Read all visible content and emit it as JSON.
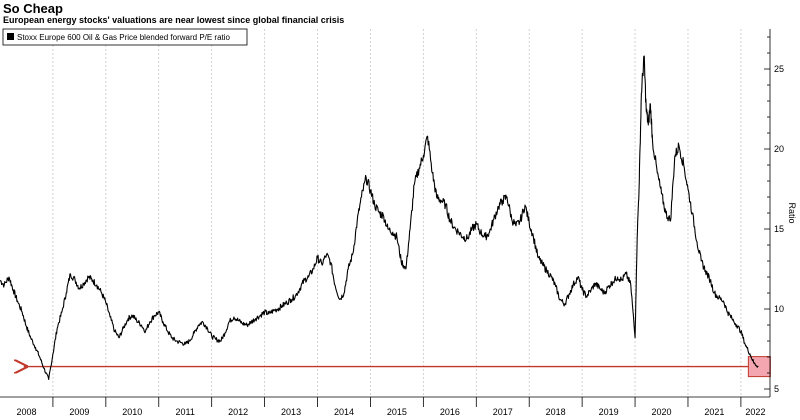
{
  "title": "So Cheap",
  "subtitle": "European energy stocks' valuations are near lowest since global financial crisis",
  "colors": {
    "line": "#000000",
    "grid": "#c8c8c8",
    "arrow": "#c0392b",
    "highlight_fill": "#f4a6b0",
    "highlight_stroke": "#c0392b"
  },
  "chart_data": {
    "type": "line",
    "title": "So Cheap",
    "subtitle": "European energy stocks' valuations are near lowest since global financial crisis",
    "ylabel": "Ratio",
    "xlabel": "",
    "x_axis": "year",
    "xlim": [
      2008,
      2022.55
    ],
    "ylim": [
      4.5,
      27.5
    ],
    "y_ticks": [
      5,
      10,
      15,
      20,
      25
    ],
    "x_tick_labels": [
      "2008",
      "2009",
      "2010",
      "2011",
      "2012",
      "2013",
      "2014",
      "2015",
      "2016",
      "2017",
      "2018",
      "2019",
      "2020",
      "2021",
      "2022"
    ],
    "legend": {
      "position": "top-left",
      "entries": [
        "Stoxx Europe 600 Oil & Gas Price blended forward P/E ratio"
      ]
    },
    "grid": "vertical-dashed",
    "series": [
      {
        "name": "Stoxx Europe 600 Oil & Gas Price blended forward P/E ratio",
        "x": [
          2008.0,
          2008.08,
          2008.17,
          2008.25,
          2008.33,
          2008.42,
          2008.5,
          2008.58,
          2008.67,
          2008.75,
          2008.83,
          2008.92,
          2009.0,
          2009.08,
          2009.17,
          2009.25,
          2009.33,
          2009.42,
          2009.5,
          2009.58,
          2009.67,
          2009.75,
          2009.83,
          2009.92,
          2010.0,
          2010.08,
          2010.17,
          2010.25,
          2010.33,
          2010.42,
          2010.5,
          2010.58,
          2010.67,
          2010.75,
          2010.83,
          2010.92,
          2011.0,
          2011.08,
          2011.17,
          2011.25,
          2011.33,
          2011.42,
          2011.5,
          2011.58,
          2011.67,
          2011.75,
          2011.83,
          2011.92,
          2012.0,
          2012.08,
          2012.17,
          2012.25,
          2012.33,
          2012.42,
          2012.5,
          2012.58,
          2012.67,
          2012.75,
          2012.83,
          2012.92,
          2013.0,
          2013.08,
          2013.17,
          2013.25,
          2013.33,
          2013.42,
          2013.5,
          2013.58,
          2013.67,
          2013.75,
          2013.83,
          2013.92,
          2014.0,
          2014.08,
          2014.17,
          2014.25,
          2014.33,
          2014.42,
          2014.5,
          2014.58,
          2014.67,
          2014.75,
          2014.83,
          2014.92,
          2015.0,
          2015.08,
          2015.17,
          2015.25,
          2015.33,
          2015.42,
          2015.5,
          2015.58,
          2015.67,
          2015.75,
          2015.83,
          2015.92,
          2016.0,
          2016.08,
          2016.17,
          2016.25,
          2016.33,
          2016.42,
          2016.5,
          2016.58,
          2016.67,
          2016.75,
          2016.83,
          2016.92,
          2017.0,
          2017.08,
          2017.17,
          2017.25,
          2017.33,
          2017.42,
          2017.5,
          2017.58,
          2017.67,
          2017.75,
          2017.83,
          2017.92,
          2018.0,
          2018.08,
          2018.17,
          2018.25,
          2018.33,
          2018.42,
          2018.5,
          2018.58,
          2018.67,
          2018.75,
          2018.83,
          2018.92,
          2019.0,
          2019.08,
          2019.17,
          2019.25,
          2019.33,
          2019.42,
          2019.5,
          2019.58,
          2019.67,
          2019.75,
          2019.83,
          2019.92,
          2020.0,
          2020.04,
          2020.08,
          2020.12,
          2020.17,
          2020.21,
          2020.25,
          2020.29,
          2020.33,
          2020.42,
          2020.5,
          2020.58,
          2020.67,
          2020.75,
          2020.83,
          2020.92,
          2021.0,
          2021.08,
          2021.17,
          2021.25,
          2021.33,
          2021.42,
          2021.5,
          2021.58,
          2021.67,
          2021.75,
          2021.83,
          2021.92,
          2022.0,
          2022.08,
          2022.17,
          2022.25,
          2022.33
        ],
        "values": [
          11.8,
          11.5,
          12.0,
          11.2,
          10.5,
          9.8,
          8.9,
          8.2,
          7.6,
          7.0,
          6.3,
          5.6,
          7.2,
          8.8,
          9.8,
          11.0,
          12.2,
          11.8,
          11.3,
          11.6,
          12.0,
          11.8,
          11.5,
          11.0,
          10.4,
          9.5,
          8.6,
          8.2,
          8.8,
          9.4,
          9.6,
          9.3,
          9.0,
          8.6,
          9.2,
          9.6,
          9.8,
          9.2,
          8.6,
          8.2,
          8.0,
          7.9,
          7.8,
          8.0,
          8.5,
          9.0,
          9.2,
          8.8,
          8.3,
          8.1,
          8.0,
          8.5,
          9.2,
          9.5,
          9.3,
          9.1,
          9.0,
          9.2,
          9.4,
          9.6,
          9.8,
          9.7,
          9.9,
          10.0,
          10.2,
          10.4,
          10.6,
          10.8,
          11.3,
          11.8,
          12.0,
          12.5,
          13.2,
          12.8,
          13.4,
          12.9,
          11.5,
          10.6,
          11.0,
          12.5,
          13.5,
          15.5,
          17.0,
          18.2,
          17.4,
          16.5,
          16.0,
          15.8,
          15.0,
          14.8,
          14.5,
          13.0,
          12.5,
          15.0,
          17.8,
          18.8,
          19.6,
          20.8,
          18.5,
          17.0,
          16.8,
          16.5,
          15.6,
          15.1,
          14.8,
          14.5,
          14.4,
          15.0,
          15.3,
          14.8,
          14.5,
          14.8,
          15.6,
          16.4,
          16.8,
          17.0,
          15.6,
          15.2,
          15.5,
          16.5,
          15.4,
          14.5,
          13.2,
          12.8,
          12.4,
          12.0,
          11.4,
          10.6,
          10.3,
          10.9,
          11.5,
          12.0,
          11.2,
          10.8,
          11.2,
          11.6,
          11.3,
          11.0,
          11.4,
          11.7,
          12.0,
          11.8,
          12.2,
          11.5,
          8.2,
          14.5,
          18.0,
          23.5,
          25.8,
          22.5,
          21.5,
          22.8,
          20.5,
          18.5,
          17.2,
          16.0,
          15.5,
          19.5,
          20.2,
          19.0,
          17.5,
          16.0,
          14.2,
          13.0,
          12.4,
          11.8,
          11.0,
          10.7,
          10.5,
          9.8,
          9.4,
          9.0,
          8.6,
          7.8,
          7.2,
          6.6,
          6.4
        ]
      }
    ],
    "annotation": {
      "type": "arrow",
      "label": "",
      "pointing": "left"
    }
  }
}
